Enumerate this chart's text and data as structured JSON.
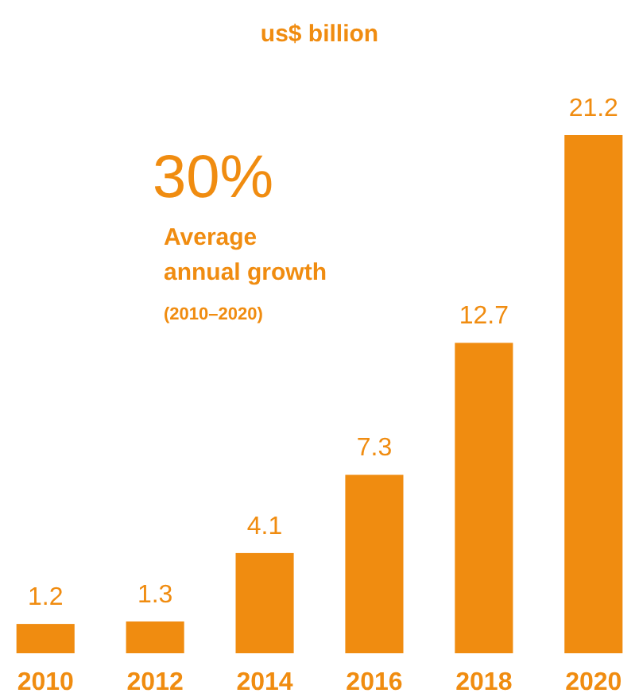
{
  "chart_data": {
    "type": "bar",
    "title": "us$ billion",
    "categories": [
      "2010",
      "2012",
      "2014",
      "2016",
      "2018",
      "2020"
    ],
    "values": [
      1.2,
      1.3,
      4.1,
      7.3,
      12.7,
      21.2
    ],
    "color": "#f08c10",
    "data_labels": true,
    "annotations": [
      "30%",
      "Average annual growth",
      "(2010–2020)"
    ]
  }
}
